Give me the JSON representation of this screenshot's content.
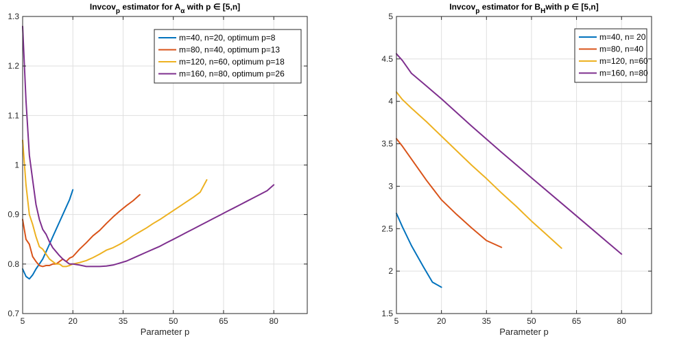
{
  "chart_data": [
    {
      "type": "line",
      "title": {
        "pre": "Invcov",
        "sub1": "p",
        "mid": " estimator for A",
        "sub2": "α",
        "post": " with p ∈ [5,n]"
      },
      "xlabel": "Parameter p",
      "ylabel": "",
      "xlim": [
        5,
        90
      ],
      "ylim": [
        0.7,
        1.3
      ],
      "xticks": [
        5,
        20,
        35,
        50,
        65,
        80
      ],
      "yticks": [
        0.7,
        0.8,
        0.9,
        1.0,
        1.1,
        1.2,
        1.3
      ],
      "yticklabels": [
        "0.7",
        "0.8",
        "0.9",
        "1",
        "1.1",
        "1.2",
        "1.3"
      ],
      "grid": true,
      "legend_position": "top-right",
      "series": [
        {
          "name": "m=40, n=20, optimum p=8",
          "color": "#0072BD",
          "x": [
            5,
            6,
            7,
            8,
            9,
            10,
            11,
            12,
            13,
            14,
            15,
            16,
            17,
            18,
            19,
            20
          ],
          "y": [
            0.79,
            0.775,
            0.77,
            0.778,
            0.79,
            0.8,
            0.81,
            0.825,
            0.84,
            0.855,
            0.87,
            0.885,
            0.9,
            0.915,
            0.93,
            0.95
          ]
        },
        {
          "name": "m=80, n=40, optimum p=13",
          "color": "#D95319",
          "x": [
            5,
            6,
            7,
            8,
            9,
            10,
            11,
            12,
            13,
            14,
            15,
            16,
            17,
            18,
            19,
            20,
            22,
            24,
            26,
            28,
            30,
            32,
            34,
            36,
            38,
            40
          ],
          "y": [
            0.89,
            0.85,
            0.84,
            0.815,
            0.805,
            0.797,
            0.795,
            0.797,
            0.797,
            0.8,
            0.8,
            0.805,
            0.81,
            0.805,
            0.812,
            0.815,
            0.83,
            0.843,
            0.857,
            0.868,
            0.882,
            0.895,
            0.907,
            0.918,
            0.928,
            0.94
          ]
        },
        {
          "name": "m=120, n=60, optimum p=18",
          "color": "#EDB120",
          "x": [
            5,
            6,
            7,
            8,
            9,
            10,
            11,
            12,
            13,
            14,
            15,
            16,
            17,
            18,
            19,
            20,
            22,
            24,
            26,
            28,
            30,
            32,
            34,
            36,
            38,
            40,
            42,
            44,
            46,
            48,
            50,
            52,
            54,
            56,
            58,
            60
          ],
          "y": [
            1.05,
            0.96,
            0.9,
            0.88,
            0.855,
            0.835,
            0.83,
            0.82,
            0.81,
            0.805,
            0.8,
            0.8,
            0.795,
            0.795,
            0.797,
            0.8,
            0.803,
            0.807,
            0.813,
            0.82,
            0.828,
            0.833,
            0.84,
            0.848,
            0.857,
            0.865,
            0.873,
            0.882,
            0.89,
            0.899,
            0.908,
            0.917,
            0.926,
            0.935,
            0.945,
            0.97
          ]
        },
        {
          "name": "m=160, n=80, optimum p=26",
          "color": "#7E2F8E",
          "x": [
            5,
            6,
            7,
            8,
            9,
            10,
            11,
            12,
            13,
            14,
            15,
            16,
            17,
            18,
            19,
            20,
            22,
            24,
            26,
            28,
            30,
            32,
            34,
            36,
            38,
            40,
            42,
            44,
            46,
            48,
            50,
            52,
            54,
            56,
            58,
            60,
            62,
            64,
            66,
            68,
            70,
            72,
            74,
            76,
            78,
            80
          ],
          "y": [
            1.28,
            1.13,
            1.02,
            0.97,
            0.92,
            0.89,
            0.87,
            0.86,
            0.845,
            0.833,
            0.825,
            0.817,
            0.81,
            0.805,
            0.8,
            0.8,
            0.798,
            0.795,
            0.795,
            0.795,
            0.796,
            0.798,
            0.802,
            0.806,
            0.812,
            0.818,
            0.824,
            0.83,
            0.836,
            0.843,
            0.85,
            0.857,
            0.864,
            0.871,
            0.878,
            0.885,
            0.892,
            0.899,
            0.906,
            0.913,
            0.92,
            0.927,
            0.934,
            0.941,
            0.948,
            0.96
          ]
        }
      ]
    },
    {
      "type": "line",
      "title": {
        "pre": "Invcov",
        "sub1": "p",
        "mid": " estimator for B",
        "sub2": "H",
        "post": "with p ∈ [5,n]"
      },
      "xlabel": "Parameter p",
      "ylabel": "",
      "xlim": [
        5,
        90
      ],
      "ylim": [
        1.5,
        5
      ],
      "xticks": [
        5,
        20,
        35,
        50,
        65,
        80
      ],
      "yticks": [
        1.5,
        2,
        2.5,
        3,
        3.5,
        4,
        4.5,
        5
      ],
      "yticklabels": [
        "1.5",
        "2",
        "2.5",
        "3",
        "3.5",
        "4",
        "4.5",
        "5"
      ],
      "grid": true,
      "legend_position": "top-right",
      "series": [
        {
          "name": "m=40, n= 20",
          "color": "#0072BD",
          "x": [
            5,
            7,
            10,
            14,
            17,
            20
          ],
          "y": [
            2.68,
            2.52,
            2.3,
            2.05,
            1.87,
            1.81
          ]
        },
        {
          "name": "m=80, n=40",
          "color": "#D95319",
          "x": [
            5,
            7,
            10,
            15,
            20,
            25,
            30,
            35,
            40
          ],
          "y": [
            3.56,
            3.47,
            3.32,
            3.07,
            2.84,
            2.67,
            2.51,
            2.36,
            2.28
          ]
        },
        {
          "name": "m=120, n=60",
          "color": "#EDB120",
          "x": [
            5,
            7,
            10,
            15,
            20,
            25,
            30,
            35,
            40,
            45,
            50,
            55,
            60
          ],
          "y": [
            4.11,
            4.02,
            3.92,
            3.76,
            3.59,
            3.42,
            3.25,
            3.09,
            2.92,
            2.76,
            2.59,
            2.43,
            2.27
          ]
        },
        {
          "name": "m=160, n=80",
          "color": "#7E2F8E",
          "x": [
            5,
            7,
            10,
            15,
            20,
            30,
            40,
            50,
            60,
            70,
            80
          ],
          "y": [
            4.56,
            4.48,
            4.33,
            4.18,
            4.03,
            3.71,
            3.4,
            3.1,
            2.8,
            2.5,
            2.2
          ]
        }
      ]
    }
  ]
}
